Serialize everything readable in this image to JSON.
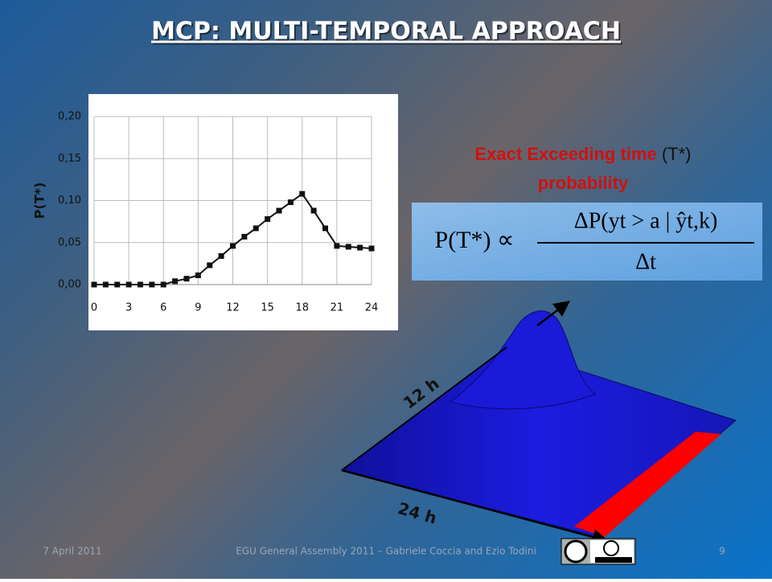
{
  "slide": {
    "title": "MCP: MULTI-TEMPORAL APPROACH",
    "heading": {
      "part1": "Exact Exceeding time",
      "part2": "(T*)",
      "part3": "probability"
    },
    "formula": {
      "lhs": "P(T*) ∝",
      "numerator": "ΔP(yt > a | ŷt,k)",
      "denominator": "Δt"
    },
    "surface_labels": {
      "side": "12 h",
      "front": "24 h"
    },
    "footer": {
      "date": "7 April 2011",
      "event": "EGU General Assembly 2011 – Gabriele Coccia and Ezio Todini",
      "page": "9"
    }
  },
  "chart_data": {
    "type": "line",
    "ylabel": "P(T*)",
    "x": [
      0,
      1,
      2,
      3,
      4,
      5,
      6,
      7,
      8,
      9,
      10,
      11,
      12,
      13,
      14,
      15,
      16,
      17,
      18,
      19,
      20,
      21,
      22,
      23,
      24
    ],
    "series": [
      {
        "color": "#111111",
        "values": [
          0,
          0,
          0,
          0,
          0,
          0,
          0,
          0.004,
          0.007,
          0.011,
          0.023,
          0.034,
          0.046,
          0.057,
          0.067,
          0.078,
          0.088,
          0.098,
          0.108,
          0.088,
          0.067,
          0.046,
          0.045,
          0.044,
          0.043
        ]
      }
    ],
    "xlim": [
      0,
      24
    ],
    "xticks": [
      0,
      3,
      6,
      9,
      12,
      15,
      18,
      21,
      24
    ],
    "ylim": [
      0,
      0.2
    ],
    "yticks": [
      {
        "value": 0,
        "label": "0,00"
      },
      {
        "value": 0.05,
        "label": "0,05"
      },
      {
        "value": 0.1,
        "label": "0,10"
      },
      {
        "value": 0.15,
        "label": "0,15"
      },
      {
        "value": 0.2,
        "label": "0,20"
      }
    ],
    "grid": true
  }
}
